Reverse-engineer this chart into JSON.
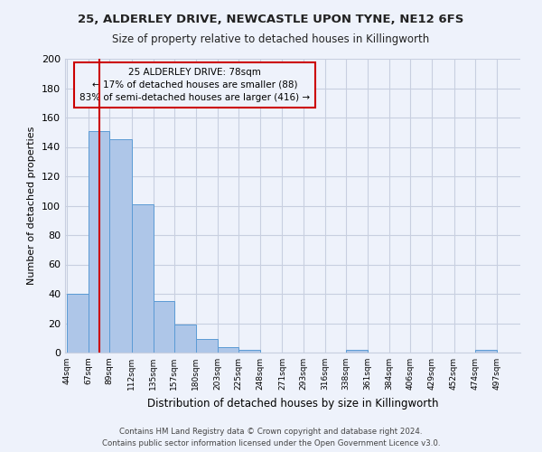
{
  "title1": "25, ALDERLEY DRIVE, NEWCASTLE UPON TYNE, NE12 6FS",
  "title2": "Size of property relative to detached houses in Killingworth",
  "xlabel": "Distribution of detached houses by size in Killingworth",
  "ylabel": "Number of detached properties",
  "footer1": "Contains HM Land Registry data © Crown copyright and database right 2024.",
  "footer2": "Contains public sector information licensed under the Open Government Licence v3.0.",
  "annotation_title": "25 ALDERLEY DRIVE: 78sqm",
  "annotation_line1": "← 17% of detached houses are smaller (88)",
  "annotation_line2": "83% of semi-detached houses are larger (416) →",
  "property_size": 78,
  "bar_edges": [
    44,
    67,
    89,
    112,
    135,
    157,
    180,
    203,
    225,
    248,
    271,
    293,
    316,
    338,
    361,
    384,
    406,
    429,
    452,
    474,
    497
  ],
  "bar_heights": [
    40,
    151,
    145,
    101,
    35,
    19,
    9,
    4,
    2,
    0,
    0,
    0,
    0,
    2,
    0,
    0,
    0,
    0,
    0,
    2
  ],
  "bar_color": "#aec6e8",
  "bar_edge_color": "#5b9bd5",
  "vline_color": "#cc0000",
  "annotation_box_color": "#cc0000",
  "background_color": "#eef2fb",
  "ylim": [
    0,
    200
  ],
  "yticks": [
    0,
    20,
    40,
    60,
    80,
    100,
    120,
    140,
    160,
    180,
    200
  ]
}
